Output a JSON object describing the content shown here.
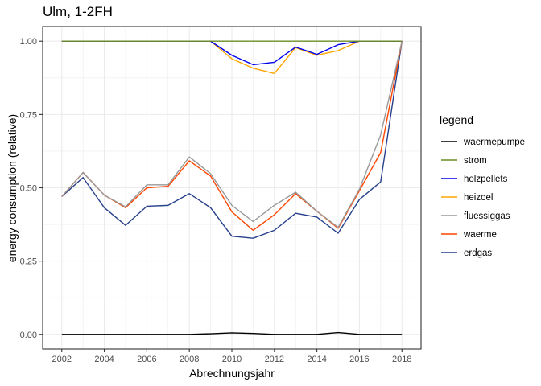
{
  "chart_data": {
    "type": "line",
    "title": "Ulm, 1-2FH",
    "xlabel": "Abrechnungsjahr",
    "ylabel": "energy consumption (relative)",
    "legend_title": "legend",
    "legend_position": "right",
    "grid": true,
    "xlim": [
      2001.1,
      2018.9
    ],
    "ylim": [
      -0.05,
      1.05
    ],
    "x": [
      2002,
      2003,
      2004,
      2005,
      2006,
      2007,
      2008,
      2009,
      2010,
      2011,
      2012,
      2013,
      2014,
      2015,
      2016,
      2017,
      2018
    ],
    "x_ticks": [
      2002,
      2004,
      2006,
      2008,
      2010,
      2012,
      2014,
      2016,
      2018
    ],
    "x_tick_labels": [
      "2002",
      "2004",
      "2006",
      "2008",
      "2010",
      "2012",
      "2014",
      "2016",
      "2018"
    ],
    "y_ticks": [
      0,
      0.25,
      0.5,
      0.75,
      1
    ],
    "y_tick_labels": [
      "0.00",
      "0.25",
      "0.50",
      "0.75",
      "1.00"
    ],
    "series": [
      {
        "name": "waermepumpe",
        "color": "#000000",
        "values": [
          0.0,
          0.0,
          0.0,
          0.0,
          0.0,
          0.0,
          0.0,
          0.002,
          0.005,
          0.003,
          0.0,
          0.0,
          0.0,
          0.006,
          0.0,
          0.0,
          0.0
        ]
      },
      {
        "name": "strom",
        "color": "#6b8e23",
        "values": [
          1.0,
          1.0,
          1.0,
          1.0,
          1.0,
          1.0,
          1.0,
          1.0,
          1.0,
          1.0,
          1.0,
          1.0,
          1.0,
          1.0,
          1.0,
          1.0,
          1.0
        ]
      },
      {
        "name": "holzpellets",
        "color": "#0000ee",
        "values": [
          1.0,
          1.0,
          1.0,
          1.0,
          1.0,
          1.0,
          1.0,
          1.0,
          0.952,
          0.92,
          0.928,
          0.98,
          0.955,
          0.988,
          1.0,
          1.0,
          1.0
        ]
      },
      {
        "name": "heizoel",
        "color": "#ffa500",
        "values": [
          1.0,
          1.0,
          1.0,
          1.0,
          1.0,
          1.0,
          1.0,
          1.0,
          0.94,
          0.908,
          0.89,
          0.978,
          0.952,
          0.968,
          1.0,
          1.0,
          1.0
        ]
      },
      {
        "name": "fluessiggas",
        "color": "#999999",
        "values": [
          0.47,
          0.552,
          0.475,
          0.435,
          0.51,
          0.51,
          0.605,
          0.548,
          0.44,
          0.385,
          0.44,
          0.485,
          0.42,
          0.365,
          0.495,
          0.68,
          1.0
        ]
      },
      {
        "name": "waerme",
        "color": "#ff4500",
        "values": [
          0.47,
          0.552,
          0.475,
          0.432,
          0.5,
          0.505,
          0.592,
          0.54,
          0.418,
          0.355,
          0.408,
          0.48,
          0.42,
          0.362,
          0.49,
          0.62,
          1.0
        ]
      },
      {
        "name": "erdgas",
        "color": "#27408b",
        "values": [
          0.47,
          0.535,
          0.432,
          0.372,
          0.437,
          0.44,
          0.48,
          0.432,
          0.335,
          0.328,
          0.355,
          0.413,
          0.4,
          0.345,
          0.46,
          0.52,
          1.0
        ]
      }
    ]
  }
}
